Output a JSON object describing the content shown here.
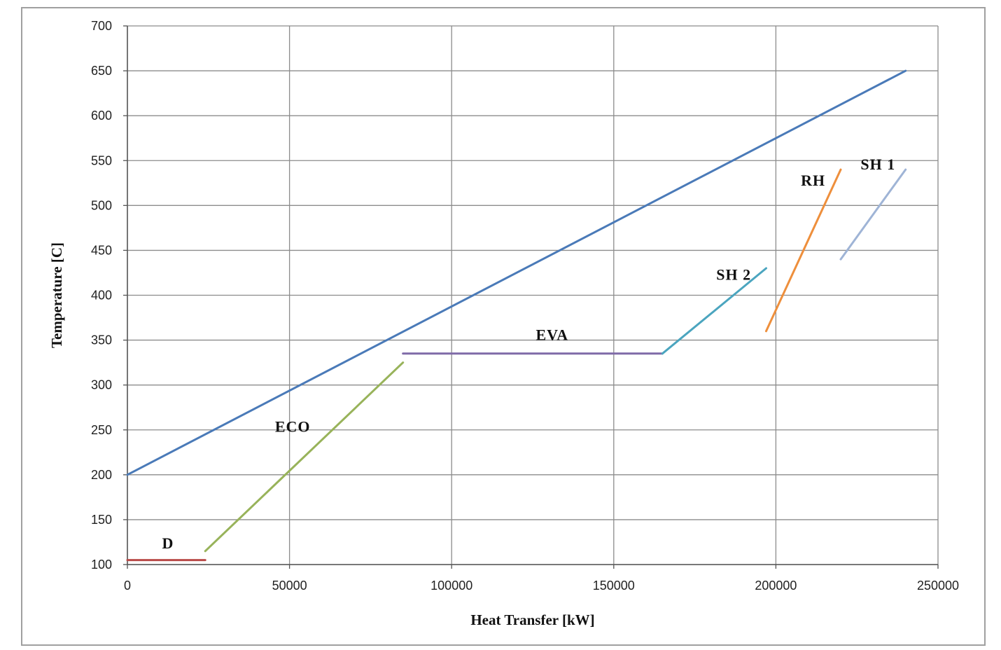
{
  "chart_data": {
    "type": "line",
    "title": "",
    "xlabel": "Heat Transfer [kW]",
    "ylabel": "Temperature [C]",
    "xlim": [
      0,
      250000
    ],
    "ylim": [
      100,
      700
    ],
    "xticks": [
      0,
      50000,
      100000,
      150000,
      200000,
      250000
    ],
    "yticks": [
      100,
      150,
      200,
      250,
      300,
      350,
      400,
      450,
      500,
      550,
      600,
      650,
      700
    ],
    "grid": true,
    "legend": "none",
    "series": [
      {
        "color": "#4a7ab8",
        "points": [
          [
            0,
            200
          ],
          [
            240000,
            650
          ]
        ]
      },
      {
        "color": "#b94a48",
        "points": [
          [
            0,
            105
          ],
          [
            24000,
            105
          ]
        ]
      },
      {
        "color": "#98b35a",
        "points": [
          [
            24000,
            115
          ],
          [
            85000,
            325
          ]
        ]
      },
      {
        "color": "#7f6aa8",
        "points": [
          [
            85000,
            335
          ],
          [
            165000,
            335
          ]
        ]
      },
      {
        "color": "#4ba5bf",
        "points": [
          [
            165000,
            335
          ],
          [
            197000,
            430
          ]
        ]
      },
      {
        "color": "#ee8f3c",
        "points": [
          [
            197000,
            360
          ],
          [
            220000,
            540
          ]
        ]
      },
      {
        "color": "#9fb4d6",
        "points": [
          [
            220000,
            440
          ],
          [
            240000,
            540
          ]
        ]
      }
    ],
    "annotations": [
      {
        "text": "D",
        "x": 12500,
        "y": 118
      },
      {
        "text": "ECO",
        "x": 51000,
        "y": 248
      },
      {
        "text": "EVA",
        "x": 131000,
        "y": 350
      },
      {
        "text": "SH 2",
        "x": 187000,
        "y": 417
      },
      {
        "text": "RH",
        "x": 211500,
        "y": 522
      },
      {
        "text": "SH 1",
        "x": 231500,
        "y": 540
      }
    ]
  }
}
